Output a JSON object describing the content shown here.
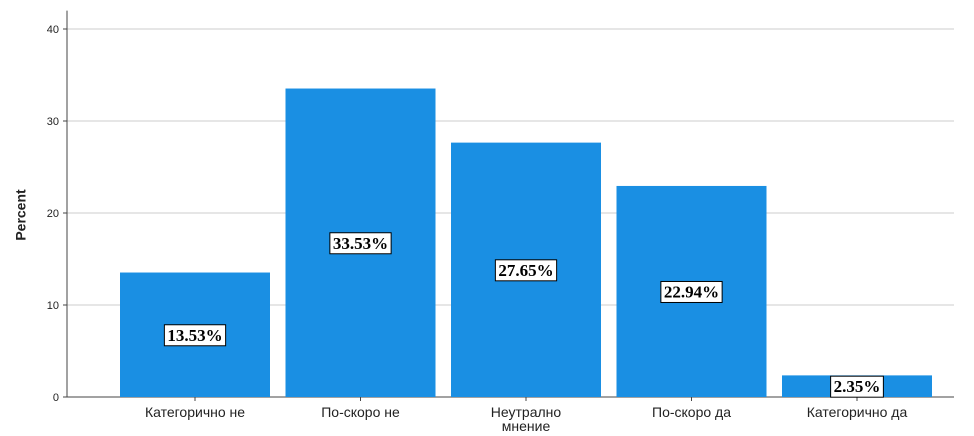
{
  "chart_data": {
    "type": "bar",
    "y_label": "Percent",
    "categories": [
      "Категорично не",
      "По-скоро не",
      "Неутрално мнение",
      "По-скоро да",
      "Категорично да"
    ],
    "values": [
      13.53,
      33.53,
      27.65,
      22.94,
      2.35
    ],
    "value_labels": [
      "13.53%",
      "33.53%",
      "27.65%",
      "22.94%",
      "2.35%"
    ],
    "color": "#1a8fe3",
    "ylim": [
      0,
      42
    ],
    "yticks": [
      0,
      10,
      20,
      30,
      40
    ],
    "grid": true
  }
}
